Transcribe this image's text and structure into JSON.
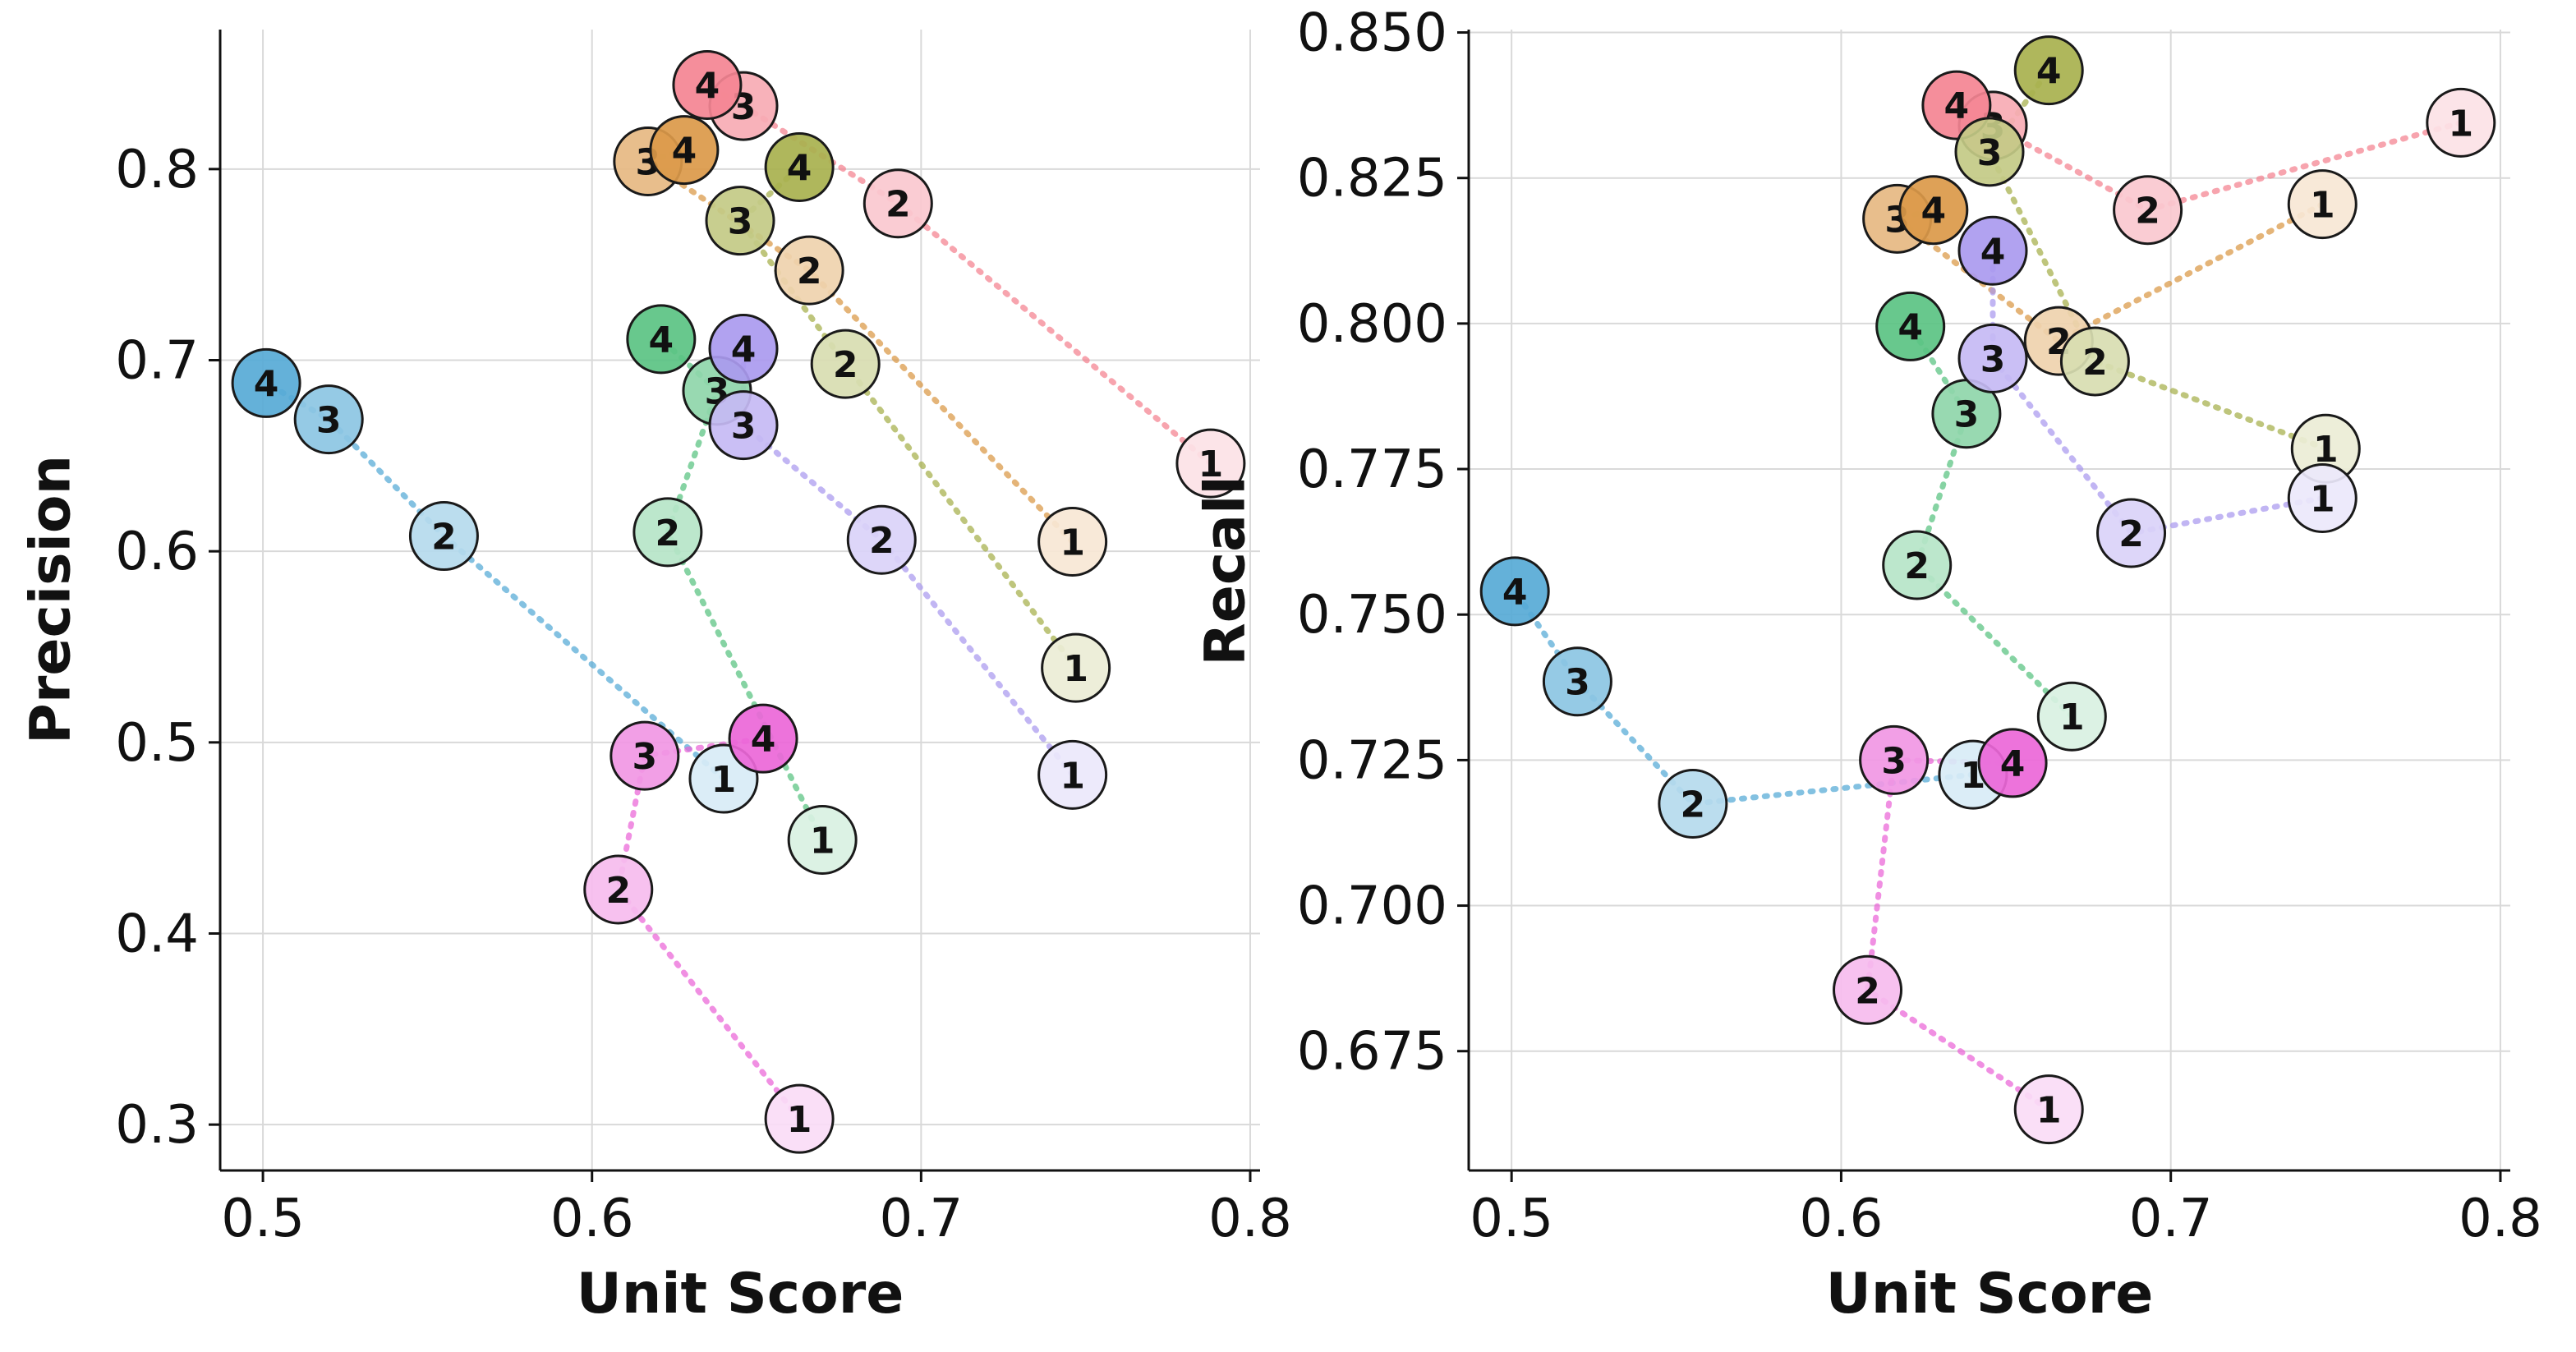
{
  "chart_data": [
    {
      "type": "scatter",
      "title": "",
      "xlabel": "Unit Score",
      "ylabel": "Precision",
      "xlim": [
        0.487,
        0.803
      ],
      "ylim": [
        0.276,
        0.873
      ],
      "xticks": [
        0.5,
        0.6,
        0.7,
        0.8
      ],
      "xtick_labels": [
        "0.5",
        "0.6",
        "0.7",
        "0.8"
      ],
      "yticks": [
        0.3,
        0.4,
        0.5,
        0.6,
        0.7,
        0.8
      ],
      "ytick_labels": [
        "0.3",
        "0.4",
        "0.5",
        "0.6",
        "0.7",
        "0.8"
      ],
      "grid": true,
      "series": [
        {
          "name": "red",
          "color": "#f37d8c",
          "points": [
            {
              "x": 0.788,
              "y": 0.646,
              "label": "1"
            },
            {
              "x": 0.693,
              "y": 0.782,
              "label": "2"
            },
            {
              "x": 0.646,
              "y": 0.833,
              "label": "3"
            },
            {
              "x": 0.635,
              "y": 0.844,
              "label": "4"
            }
          ]
        },
        {
          "name": "orange",
          "color": "#d9943f",
          "points": [
            {
              "x": 0.746,
              "y": 0.605,
              "label": "1"
            },
            {
              "x": 0.666,
              "y": 0.747,
              "label": "2"
            },
            {
              "x": 0.617,
              "y": 0.804,
              "label": "3"
            },
            {
              "x": 0.628,
              "y": 0.81,
              "label": "4"
            }
          ]
        },
        {
          "name": "olive",
          "color": "#a3ad45",
          "points": [
            {
              "x": 0.747,
              "y": 0.539,
              "label": "1"
            },
            {
              "x": 0.677,
              "y": 0.698,
              "label": "2"
            },
            {
              "x": 0.645,
              "y": 0.773,
              "label": "3"
            },
            {
              "x": 0.663,
              "y": 0.801,
              "label": "4"
            }
          ]
        },
        {
          "name": "green",
          "color": "#52c07c",
          "points": [
            {
              "x": 0.67,
              "y": 0.449,
              "label": "1"
            },
            {
              "x": 0.623,
              "y": 0.61,
              "label": "2"
            },
            {
              "x": 0.638,
              "y": 0.684,
              "label": "3"
            },
            {
              "x": 0.621,
              "y": 0.711,
              "label": "4"
            }
          ]
        },
        {
          "name": "cyan",
          "color": "#4ea6d4",
          "points": [
            {
              "x": 0.64,
              "y": 0.481,
              "label": "1"
            },
            {
              "x": 0.555,
              "y": 0.608,
              "label": "2"
            },
            {
              "x": 0.52,
              "y": 0.669,
              "label": "3"
            },
            {
              "x": 0.501,
              "y": 0.688,
              "label": "4"
            }
          ]
        },
        {
          "name": "purple",
          "color": "#a695ee",
          "points": [
            {
              "x": 0.746,
              "y": 0.483,
              "label": "1"
            },
            {
              "x": 0.688,
              "y": 0.606,
              "label": "2"
            },
            {
              "x": 0.646,
              "y": 0.666,
              "label": "3"
            },
            {
              "x": 0.646,
              "y": 0.706,
              "label": "4"
            }
          ]
        },
        {
          "name": "magenta",
          "color": "#ea5fd6",
          "points": [
            {
              "x": 0.663,
              "y": 0.303,
              "label": "1"
            },
            {
              "x": 0.608,
              "y": 0.423,
              "label": "2"
            },
            {
              "x": 0.616,
              "y": 0.493,
              "label": "3"
            },
            {
              "x": 0.652,
              "y": 0.502,
              "label": "4"
            }
          ]
        }
      ]
    },
    {
      "type": "scatter",
      "title": "",
      "xlabel": "Unit Score",
      "ylabel": "Recall",
      "xlim": [
        0.487,
        0.803
      ],
      "ylim": [
        0.6545,
        0.8505
      ],
      "xticks": [
        0.5,
        0.6,
        0.7,
        0.8
      ],
      "xtick_labels": [
        "0.5",
        "0.6",
        "0.7",
        "0.8"
      ],
      "yticks": [
        0.675,
        0.7,
        0.725,
        0.75,
        0.775,
        0.8,
        0.825,
        0.85
      ],
      "ytick_labels": [
        "0.675",
        "0.700",
        "0.725",
        "0.750",
        "0.775",
        "0.800",
        "0.825",
        "0.850"
      ],
      "grid": true,
      "series": [
        {
          "name": "red",
          "color": "#f37d8c",
          "points": [
            {
              "x": 0.788,
              "y": 0.8345,
              "label": "1"
            },
            {
              "x": 0.693,
              "y": 0.8195,
              "label": "2"
            },
            {
              "x": 0.646,
              "y": 0.834,
              "label": "3"
            },
            {
              "x": 0.635,
              "y": 0.8375,
              "label": "4"
            }
          ]
        },
        {
          "name": "orange",
          "color": "#d9943f",
          "points": [
            {
              "x": 0.746,
              "y": 0.8205,
              "label": "1"
            },
            {
              "x": 0.666,
              "y": 0.797,
              "label": "2"
            },
            {
              "x": 0.617,
              "y": 0.818,
              "label": "3"
            },
            {
              "x": 0.628,
              "y": 0.8195,
              "label": "4"
            }
          ]
        },
        {
          "name": "olive",
          "color": "#a3ad45",
          "points": [
            {
              "x": 0.747,
              "y": 0.7785,
              "label": "1"
            },
            {
              "x": 0.677,
              "y": 0.7935,
              "label": "2"
            },
            {
              "x": 0.645,
              "y": 0.8295,
              "label": "3"
            },
            {
              "x": 0.663,
              "y": 0.8435,
              "label": "4"
            }
          ]
        },
        {
          "name": "green",
          "color": "#52c07c",
          "points": [
            {
              "x": 0.67,
              "y": 0.7325,
              "label": "1"
            },
            {
              "x": 0.623,
              "y": 0.7585,
              "label": "2"
            },
            {
              "x": 0.638,
              "y": 0.7845,
              "label": "3"
            },
            {
              "x": 0.621,
              "y": 0.7995,
              "label": "4"
            }
          ]
        },
        {
          "name": "cyan",
          "color": "#4ea6d4",
          "points": [
            {
              "x": 0.64,
              "y": 0.7225,
              "label": "1"
            },
            {
              "x": 0.555,
              "y": 0.7175,
              "label": "2"
            },
            {
              "x": 0.52,
              "y": 0.7385,
              "label": "3"
            },
            {
              "x": 0.501,
              "y": 0.754,
              "label": "4"
            }
          ]
        },
        {
          "name": "purple",
          "color": "#a695ee",
          "points": [
            {
              "x": 0.746,
              "y": 0.77,
              "label": "1"
            },
            {
              "x": 0.688,
              "y": 0.764,
              "label": "2"
            },
            {
              "x": 0.646,
              "y": 0.794,
              "label": "3"
            },
            {
              "x": 0.646,
              "y": 0.8125,
              "label": "4"
            }
          ]
        },
        {
          "name": "magenta",
          "color": "#ea5fd6",
          "points": [
            {
              "x": 0.663,
              "y": 0.665,
              "label": "1"
            },
            {
              "x": 0.608,
              "y": 0.6855,
              "label": "2"
            },
            {
              "x": 0.616,
              "y": 0.725,
              "label": "3"
            },
            {
              "x": 0.652,
              "y": 0.7245,
              "label": "4"
            }
          ]
        }
      ]
    }
  ]
}
